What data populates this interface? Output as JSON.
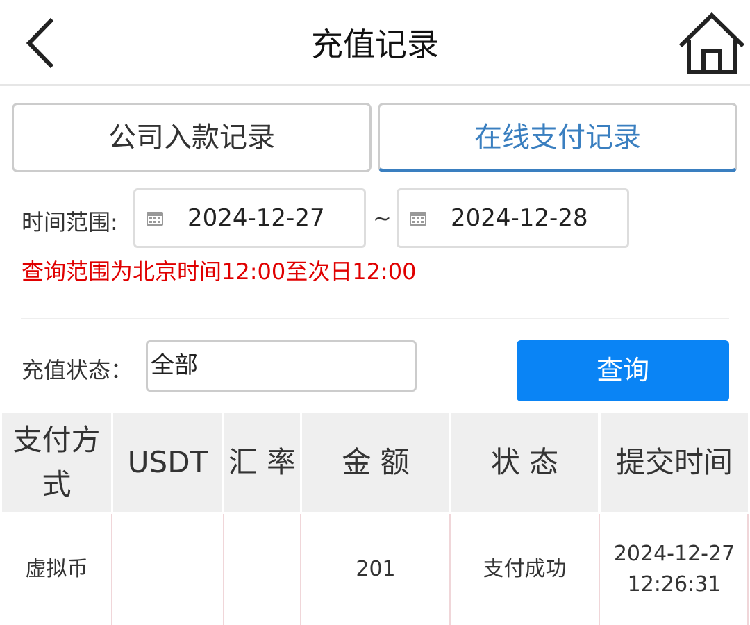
{
  "header": {
    "title": "充值记录",
    "back_icon": "chevron-left-icon",
    "home_icon": "home-icon"
  },
  "tabs": [
    {
      "label": "公司入款记录",
      "active": false
    },
    {
      "label": "在线支付记录",
      "active": true
    }
  ],
  "filters": {
    "time_label": "时间范围:",
    "start_date": "2024-12-27",
    "separator": "~",
    "end_date": "2024-12-28",
    "note": "查询范围为北京时间12:00至次日12:00",
    "status_label": "充值状态：",
    "status_value": "全部",
    "query_button": "查询"
  },
  "colors": {
    "accent": "#3a7fc0",
    "button": "#0a84f5",
    "note": "#e00000"
  },
  "table": {
    "headers": [
      "支付方式",
      "USDT",
      "汇 率",
      "金 额",
      "状 态",
      "提交时间"
    ],
    "rows": [
      [
        "虚拟币",
        "",
        "",
        "201",
        "支付成功",
        "2024-12-27 12:26:31"
      ]
    ]
  }
}
